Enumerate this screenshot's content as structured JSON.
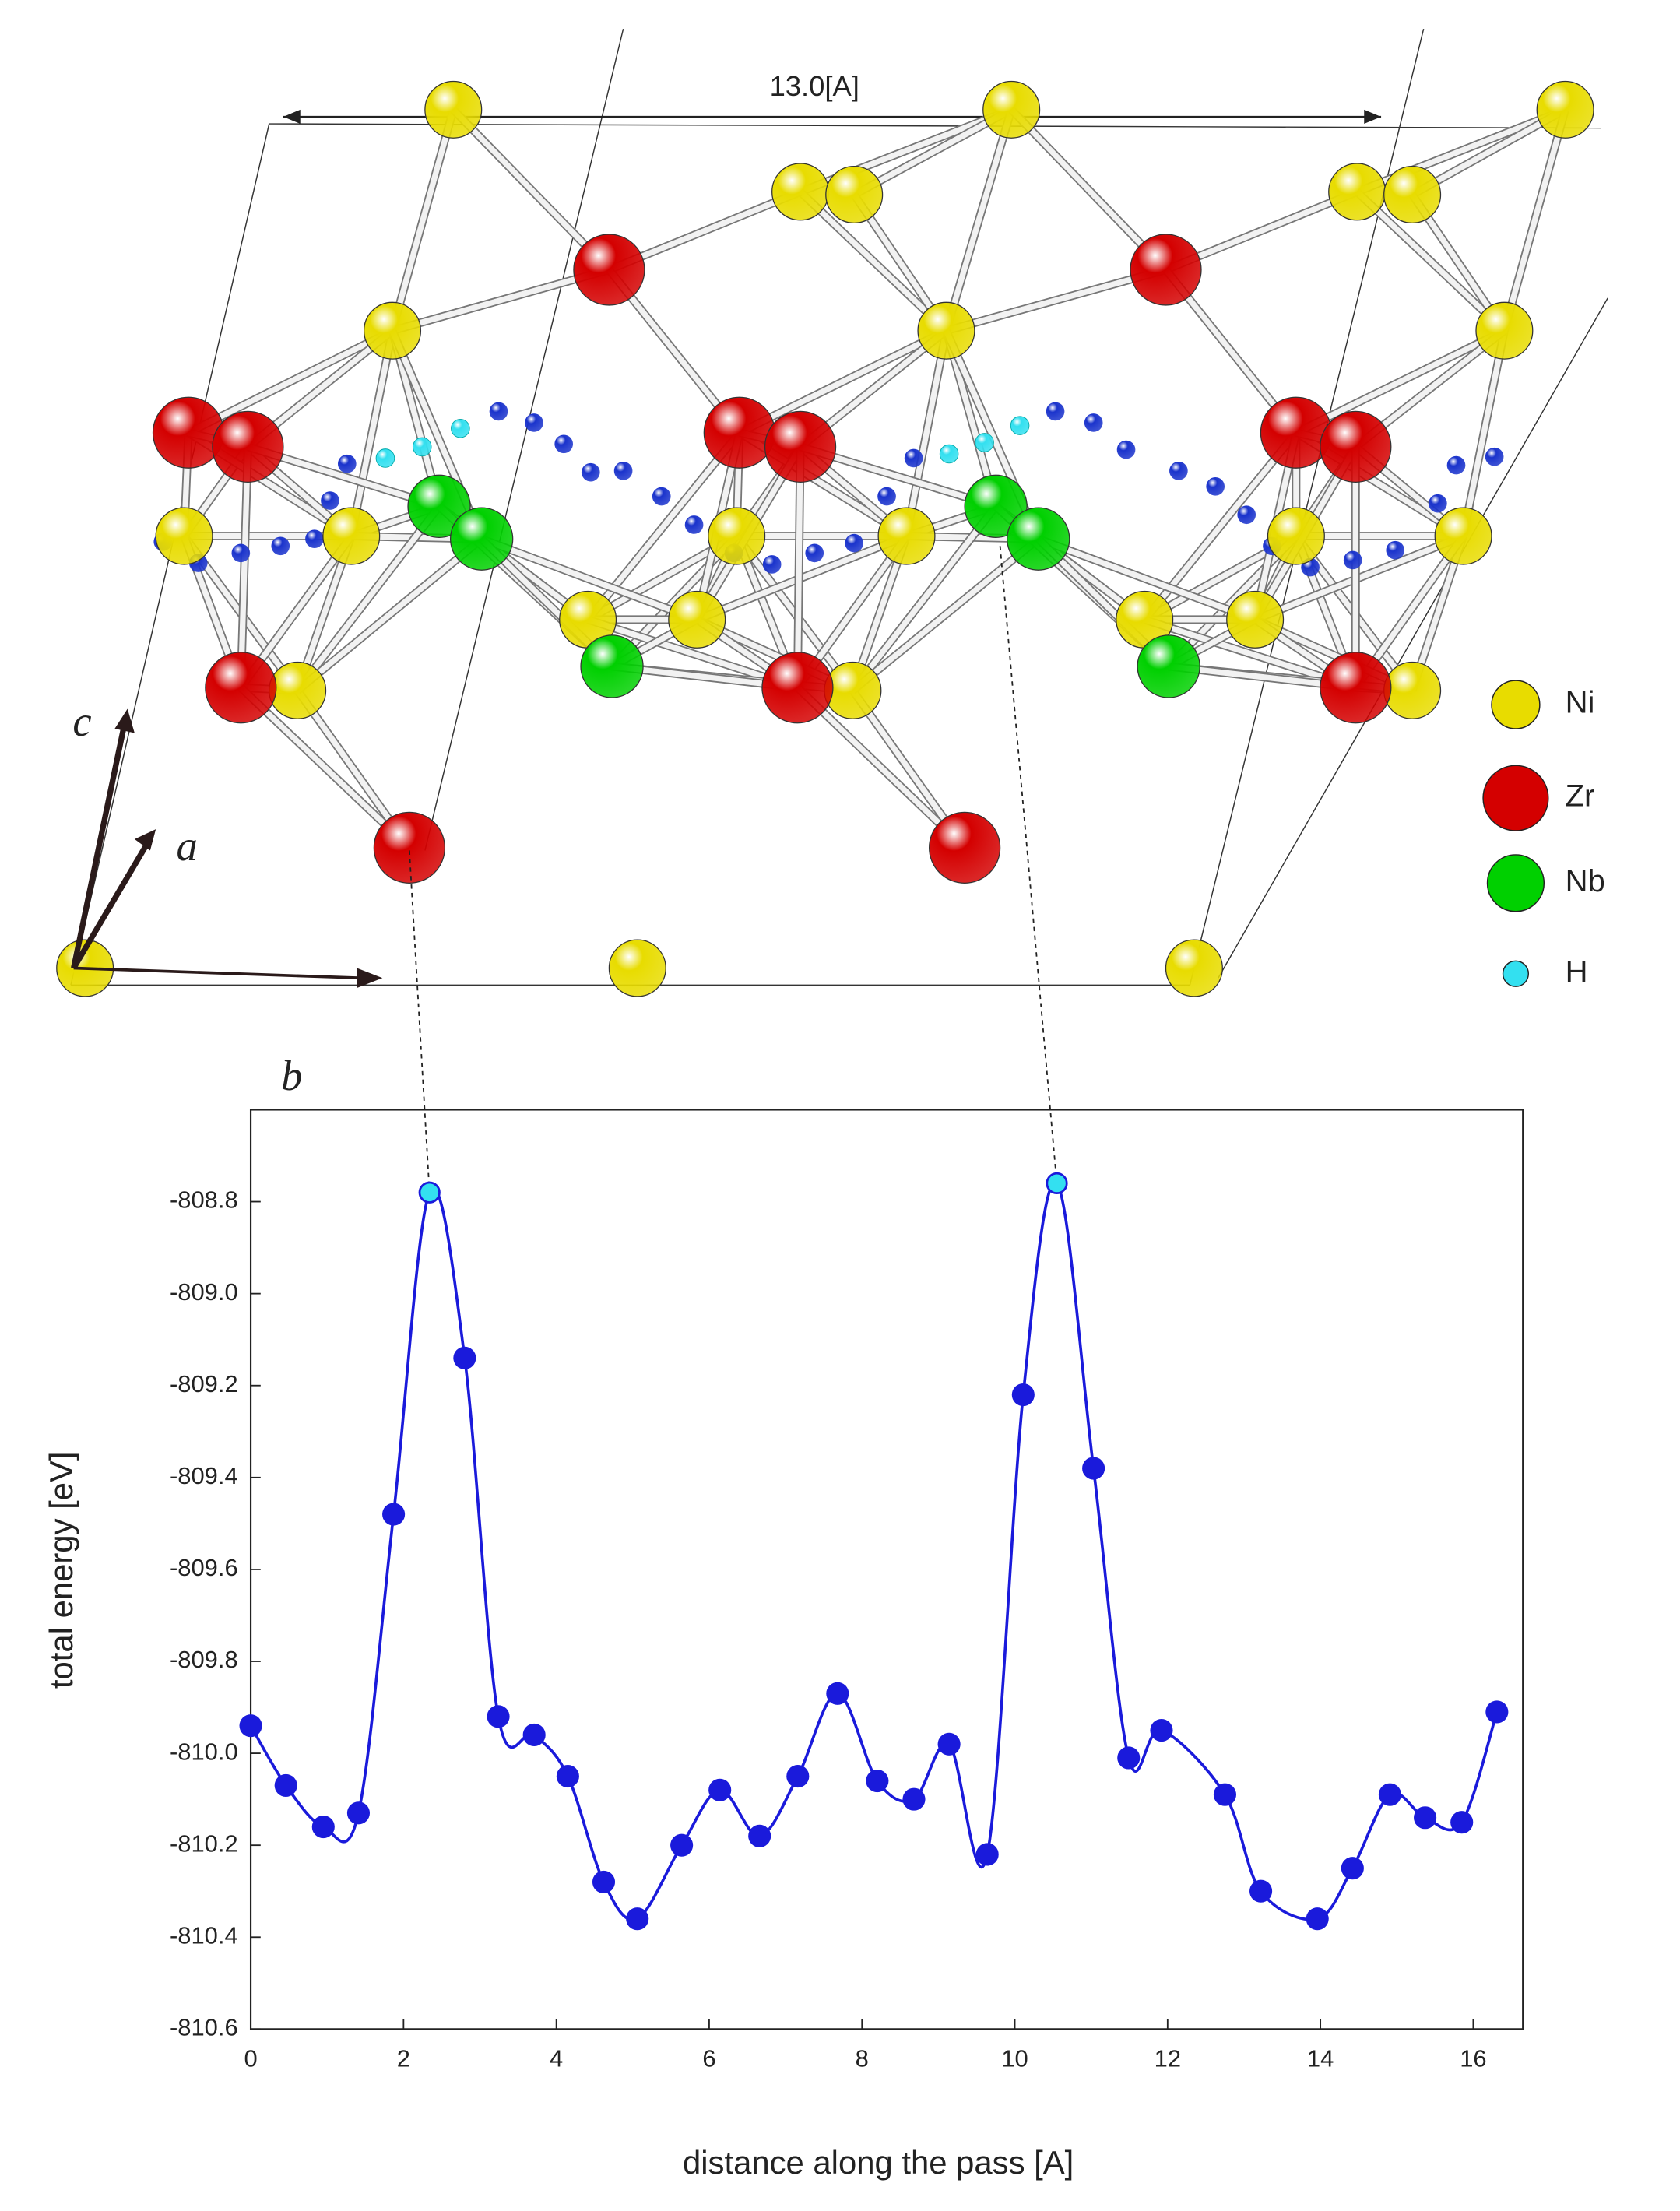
{
  "structure": {
    "dimension_label": "13.0[A]",
    "axis_labels": {
      "c": "c",
      "a": "a",
      "b": "b"
    },
    "legend": [
      {
        "name": "Ni",
        "color": "#e8dc00"
      },
      {
        "name": "Zr",
        "color": "#d40000"
      },
      {
        "name": "Nb",
        "color": "#00d000"
      },
      {
        "name": "H",
        "color": "#33e0f0"
      }
    ]
  },
  "chart_data": {
    "type": "line",
    "x_label": "distance along the pass [A]",
    "y_label": "total energy [eV]",
    "x": [
      0,
      0.46,
      0.95,
      1.41,
      1.87,
      2.34,
      2.8,
      3.24,
      3.71,
      4.15,
      4.62,
      5.06,
      5.64,
      6.14,
      6.66,
      7.16,
      7.68,
      8.2,
      8.68,
      9.14,
      9.64,
      10.11,
      10.55,
      11.03,
      11.49,
      11.92,
      12.75,
      13.22,
      13.96,
      14.42,
      14.91,
      15.37,
      15.85,
      16.31
    ],
    "values": [
      -809.94,
      -810.07,
      -810.16,
      -810.13,
      -809.48,
      -808.78,
      -809.14,
      -809.92,
      -809.96,
      -810.05,
      -810.28,
      -810.36,
      -810.2,
      -810.08,
      -810.18,
      -810.05,
      -809.87,
      -810.06,
      -810.1,
      -809.98,
      -810.22,
      -809.22,
      -808.76,
      -809.38,
      -810.01,
      -809.95,
      -810.09,
      -810.3,
      -810.36,
      -810.25,
      -810.09,
      -810.14,
      -810.15,
      -809.91
    ],
    "color": "#1a1adb",
    "highlight_points": [
      5,
      22
    ],
    "highlight_color": "#33e0f0",
    "xlim": [
      0,
      16.65
    ],
    "ylim": [
      -810.6,
      -808.6
    ],
    "xticks": [
      0,
      2,
      4,
      6,
      8,
      10,
      12,
      14,
      16
    ],
    "yticks": [
      -808.8,
      {
        "value": -809,
        "label": "-809.0"
      },
      -809.2,
      -809.4,
      -809.6,
      -809.8,
      {
        "value": -810,
        "label": "-810.0"
      },
      -810.2,
      -810.4,
      -810.6
    ],
    "grid": false
  }
}
